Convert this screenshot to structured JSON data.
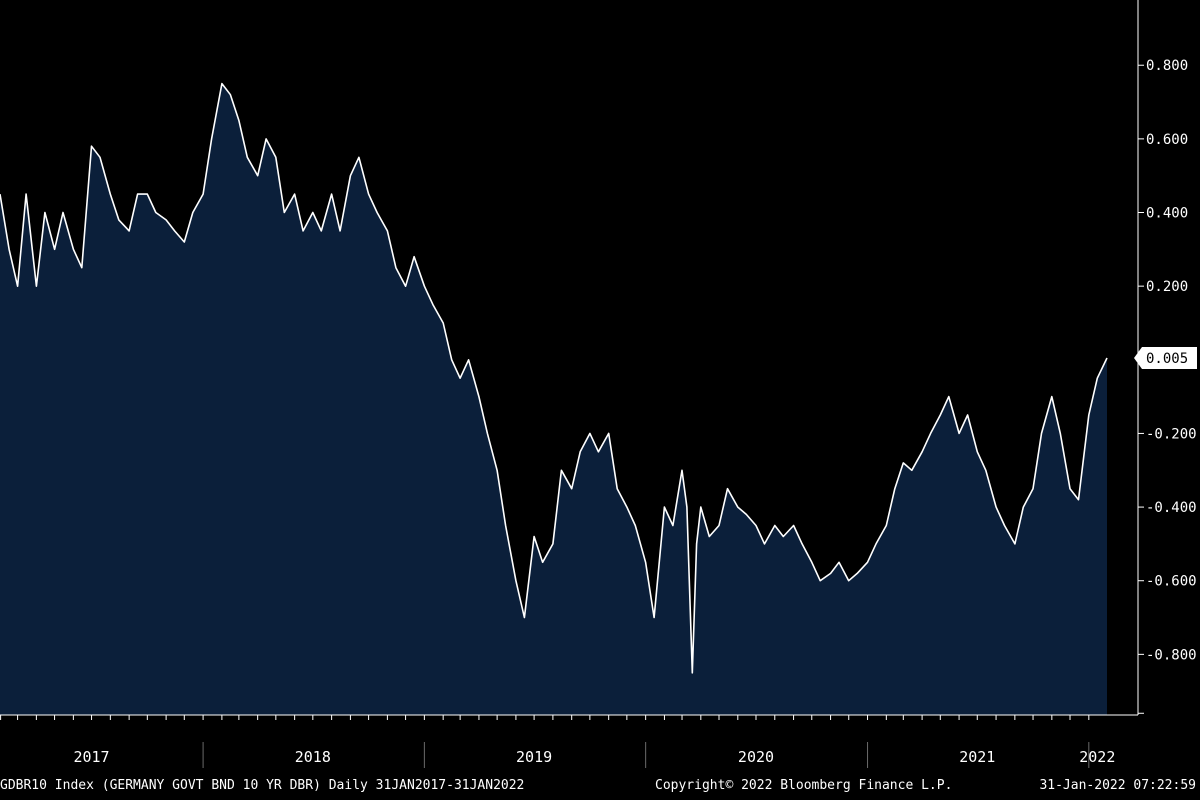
{
  "chart_data": {
    "type": "area",
    "x": [
      "2017-01-31",
      "2017-02-15",
      "2017-03-01",
      "2017-03-15",
      "2017-04-01",
      "2017-04-15",
      "2017-05-01",
      "2017-05-15",
      "2017-06-01",
      "2017-06-15",
      "2017-07-01",
      "2017-07-15",
      "2017-08-01",
      "2017-08-15",
      "2017-09-01",
      "2017-09-15",
      "2017-10-01",
      "2017-10-15",
      "2017-11-01",
      "2017-11-15",
      "2017-12-01",
      "2017-12-15",
      "2018-01-01",
      "2018-01-15",
      "2018-02-01",
      "2018-02-15",
      "2018-03-01",
      "2018-03-15",
      "2018-04-01",
      "2018-04-15",
      "2018-05-01",
      "2018-05-15",
      "2018-06-01",
      "2018-06-15",
      "2018-07-01",
      "2018-07-15",
      "2018-08-01",
      "2018-08-15",
      "2018-09-01",
      "2018-09-15",
      "2018-10-01",
      "2018-10-15",
      "2018-11-01",
      "2018-11-15",
      "2018-12-01",
      "2018-12-15",
      "2019-01-01",
      "2019-01-15",
      "2019-02-01",
      "2019-02-15",
      "2019-03-01",
      "2019-03-15",
      "2019-04-01",
      "2019-04-15",
      "2019-05-01",
      "2019-05-15",
      "2019-06-01",
      "2019-06-15",
      "2019-07-01",
      "2019-07-15",
      "2019-08-01",
      "2019-08-15",
      "2019-09-01",
      "2019-09-15",
      "2019-10-01",
      "2019-10-15",
      "2019-11-01",
      "2019-11-15",
      "2019-12-01",
      "2019-12-15",
      "2020-01-01",
      "2020-01-15",
      "2020-02-01",
      "2020-02-15",
      "2020-03-01",
      "2020-03-09",
      "2020-03-18",
      "2020-03-25",
      "2020-04-01",
      "2020-04-15",
      "2020-05-01",
      "2020-05-15",
      "2020-06-01",
      "2020-06-15",
      "2020-07-01",
      "2020-07-15",
      "2020-08-01",
      "2020-08-15",
      "2020-09-01",
      "2020-09-15",
      "2020-10-01",
      "2020-10-15",
      "2020-11-01",
      "2020-11-15",
      "2020-12-01",
      "2020-12-15",
      "2021-01-01",
      "2021-01-15",
      "2021-02-01",
      "2021-02-15",
      "2021-03-01",
      "2021-03-15",
      "2021-04-01",
      "2021-04-15",
      "2021-05-01",
      "2021-05-15",
      "2021-06-01",
      "2021-06-15",
      "2021-07-01",
      "2021-07-15",
      "2021-08-01",
      "2021-08-15",
      "2021-09-01",
      "2021-09-15",
      "2021-10-01",
      "2021-10-15",
      "2021-11-01",
      "2021-11-15",
      "2021-12-01",
      "2021-12-15",
      "2022-01-01",
      "2022-01-15",
      "2022-01-31"
    ],
    "values": [
      0.45,
      0.3,
      0.2,
      0.45,
      0.2,
      0.4,
      0.3,
      0.4,
      0.3,
      0.25,
      0.58,
      0.55,
      0.45,
      0.38,
      0.35,
      0.45,
      0.45,
      0.4,
      0.38,
      0.35,
      0.32,
      0.4,
      0.45,
      0.6,
      0.75,
      0.72,
      0.65,
      0.55,
      0.5,
      0.6,
      0.55,
      0.4,
      0.45,
      0.35,
      0.4,
      0.35,
      0.45,
      0.35,
      0.5,
      0.55,
      0.45,
      0.4,
      0.35,
      0.25,
      0.2,
      0.28,
      0.2,
      0.15,
      0.1,
      0.0,
      -0.05,
      0.0,
      -0.1,
      -0.2,
      -0.3,
      -0.45,
      -0.6,
      -0.7,
      -0.48,
      -0.55,
      -0.5,
      -0.3,
      -0.35,
      -0.25,
      -0.2,
      -0.25,
      -0.2,
      -0.35,
      -0.4,
      -0.45,
      -0.55,
      -0.7,
      -0.4,
      -0.45,
      -0.3,
      -0.4,
      -0.85,
      -0.5,
      -0.4,
      -0.48,
      -0.45,
      -0.35,
      -0.4,
      -0.42,
      -0.45,
      -0.5,
      -0.45,
      -0.48,
      -0.45,
      -0.5,
      -0.55,
      -0.6,
      -0.58,
      -0.55,
      -0.6,
      -0.58,
      -0.55,
      -0.5,
      -0.45,
      -0.35,
      -0.28,
      -0.3,
      -0.25,
      -0.2,
      -0.15,
      -0.1,
      -0.2,
      -0.15,
      -0.25,
      -0.3,
      -0.4,
      -0.45,
      -0.5,
      -0.4,
      -0.35,
      -0.2,
      -0.1,
      -0.2,
      -0.35,
      -0.38,
      -0.15,
      -0.05,
      0.005
    ],
    "y_ticks": [
      0.8,
      0.6,
      0.4,
      0.2,
      -0.2,
      -0.4,
      -0.6,
      -0.8
    ],
    "y_tick_labels": [
      "0.800",
      "0.600",
      "0.400",
      "0.200",
      "-0.200",
      "-0.400",
      "-0.600",
      "-0.800"
    ],
    "ylim": [
      -1.0,
      0.95
    ],
    "x_labels": [
      {
        "date": "2017-07-01",
        "label": "2017"
      },
      {
        "date": "2018-07-01",
        "label": "2018"
      },
      {
        "date": "2019-07-01",
        "label": "2019"
      },
      {
        "date": "2020-07-01",
        "label": "2020"
      },
      {
        "date": "2021-07-01",
        "label": "2021"
      },
      {
        "date": "2022-01-15",
        "label": "2022"
      }
    ],
    "year_boundaries": [
      "2018-01-01",
      "2019-01-01",
      "2020-01-01",
      "2021-01-01",
      "2022-01-01"
    ],
    "last_value_label": "0.005",
    "xlim": [
      "2017-01-31",
      "2022-01-31"
    ]
  },
  "colors": {
    "area_fill": "#0b1f3a",
    "line": "#ffffff",
    "background": "#000000",
    "axis_text": "#ffffff"
  },
  "footer": {
    "left": "GDBR10 Index (GERMANY GOVT BND 10 YR DBR)  Daily 31JAN2017-31JAN2022",
    "middle": "Copyright© 2022 Bloomberg Finance L.P.",
    "right": "31-Jan-2022 07:22:59"
  }
}
